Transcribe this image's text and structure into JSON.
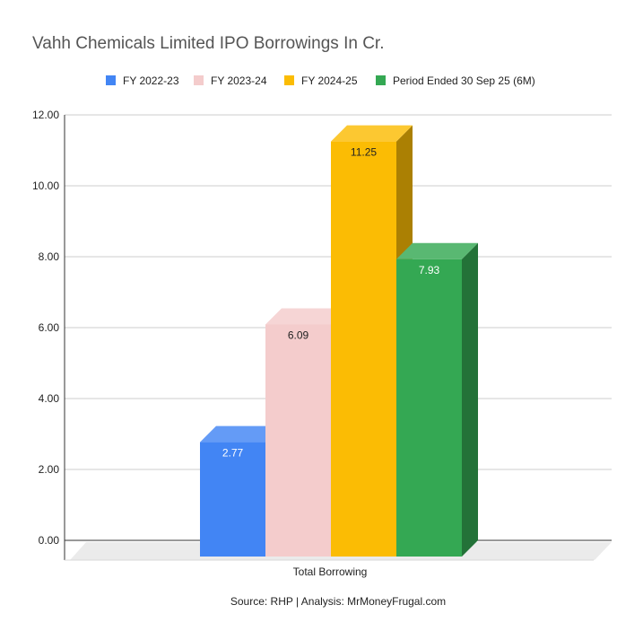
{
  "chart_data": {
    "type": "bar",
    "title": "Vahh Chemicals Limited IPO Borrowings In Cr.",
    "categories": [
      "Total Borrowing"
    ],
    "series": [
      {
        "name": "FY 2022-23",
        "values": [
          2.77
        ],
        "color": "#4285f4"
      },
      {
        "name": "FY 2023-24",
        "values": [
          6.09
        ],
        "color": "#f4cccc"
      },
      {
        "name": "FY 2024-25",
        "values": [
          11.25
        ],
        "color": "#fbbc04"
      },
      {
        "name": "Period Ended 30 Sep 25 (6M)",
        "values": [
          7.93
        ],
        "color": "#34a853"
      }
    ],
    "data_label_colors": [
      "#ffffff",
      "#222222",
      "#222222",
      "#ffffff"
    ],
    "y_ticks": [
      "0.00",
      "2.00",
      "4.00",
      "6.00",
      "8.00",
      "10.00",
      "12.00"
    ],
    "ylim": [
      0,
      12
    ],
    "grid": true,
    "legend_position": "top",
    "style": "3d"
  },
  "source": "Source: RHP | Analysis: MrMoneyFrugal.com"
}
